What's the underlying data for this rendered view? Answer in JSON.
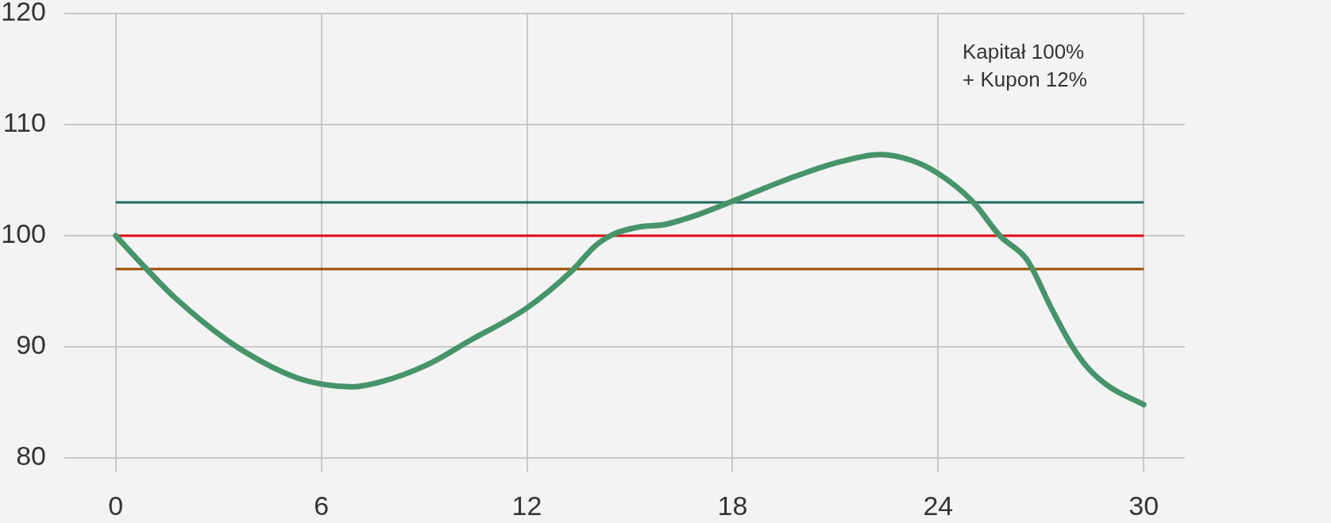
{
  "chart_data": {
    "type": "line",
    "x": [
      0,
      0.9,
      1.7,
      3.2,
      4.3,
      5.3,
      6.1,
      6.9,
      7.8,
      9.1,
      10.3,
      12.0,
      13.3,
      14.0,
      14.5,
      15.3,
      16.0,
      17.0,
      18.0,
      19.7,
      21.2,
      22.3,
      23.2,
      24.0,
      25.0,
      25.8,
      26.6,
      27.3,
      27.9,
      28.4,
      29.0,
      30.0
    ],
    "series": [
      {
        "color": "#47946a",
        "values": [
          100,
          97.0,
          94.5,
          90.7,
          88.6,
          87.2,
          86.6,
          86.4,
          86.9,
          88.4,
          90.5,
          93.5,
          96.8,
          99.1,
          100.1,
          100.8,
          101.0,
          101.9,
          103.1,
          105.2,
          106.7,
          107.3,
          106.8,
          105.6,
          103.1,
          100.0,
          97.8,
          93.5,
          90.1,
          88.0,
          86.4,
          84.8
        ]
      }
    ],
    "xlim": [
      -1.5,
      31.2
    ],
    "ylim": [
      80,
      120
    ],
    "xticks": [
      0,
      6,
      12,
      18,
      24,
      30
    ],
    "yticks": [
      80,
      90,
      100,
      110,
      120
    ],
    "ref_lines": [
      {
        "axis": "y",
        "value": 103,
        "color": "#1e6b5f"
      },
      {
        "axis": "y",
        "value": 100,
        "color": "#e3000f"
      },
      {
        "axis": "y",
        "value": 97,
        "color": "#9c4a00"
      }
    ],
    "annotations": [
      "Kapitał 100%\n+ Kupon 12%"
    ],
    "grid": true,
    "marker": "none"
  }
}
